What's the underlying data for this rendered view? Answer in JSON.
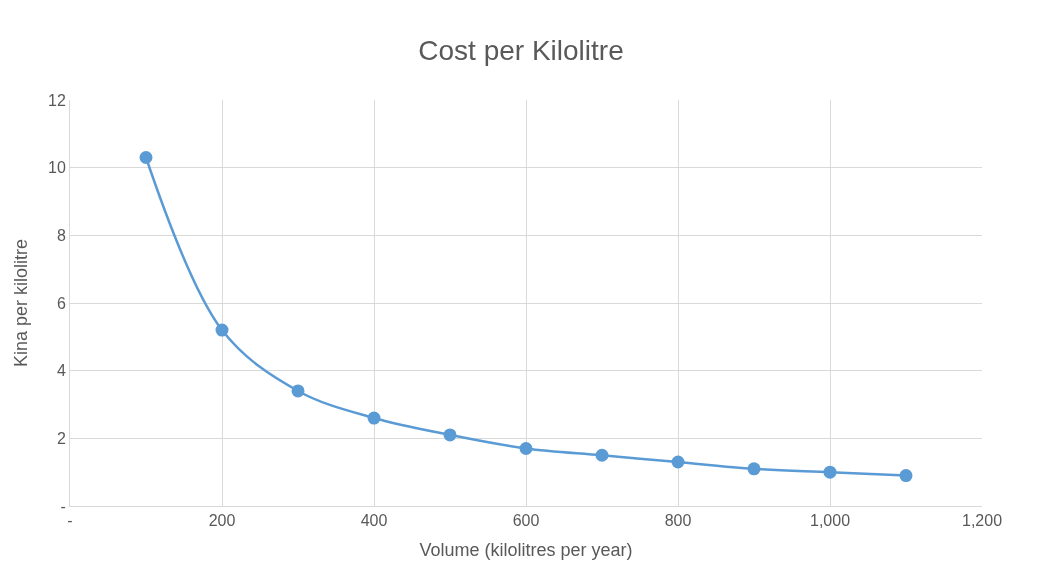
{
  "chart_data": {
    "type": "line",
    "title": "Cost per Kilolitre",
    "xlabel": "Volume (kilolitres per year)",
    "ylabel": "Kina per kilolitre",
    "x": [
      100,
      200,
      300,
      400,
      500,
      600,
      700,
      800,
      900,
      1000,
      1100
    ],
    "series": [
      {
        "color": "#5b9bd5",
        "values": [
          10.3,
          5.2,
          3.4,
          2.6,
          2.1,
          1.7,
          1.5,
          1.3,
          1.1,
          1.0,
          0.9
        ]
      }
    ],
    "xlim": [
      0,
      1200
    ],
    "xticks": [
      {
        "value": 0,
        "label": "-"
      },
      200,
      400,
      600,
      800,
      {
        "value": 1000,
        "label": "1,000"
      },
      {
        "value": 1200,
        "label": "1,200"
      }
    ],
    "ylim": [
      0,
      12
    ],
    "yticks": [
      {
        "value": 0,
        "label": "-"
      },
      2,
      4,
      6,
      8,
      10,
      12
    ],
    "grid": true,
    "marker": "circle",
    "line_style": "solid"
  }
}
